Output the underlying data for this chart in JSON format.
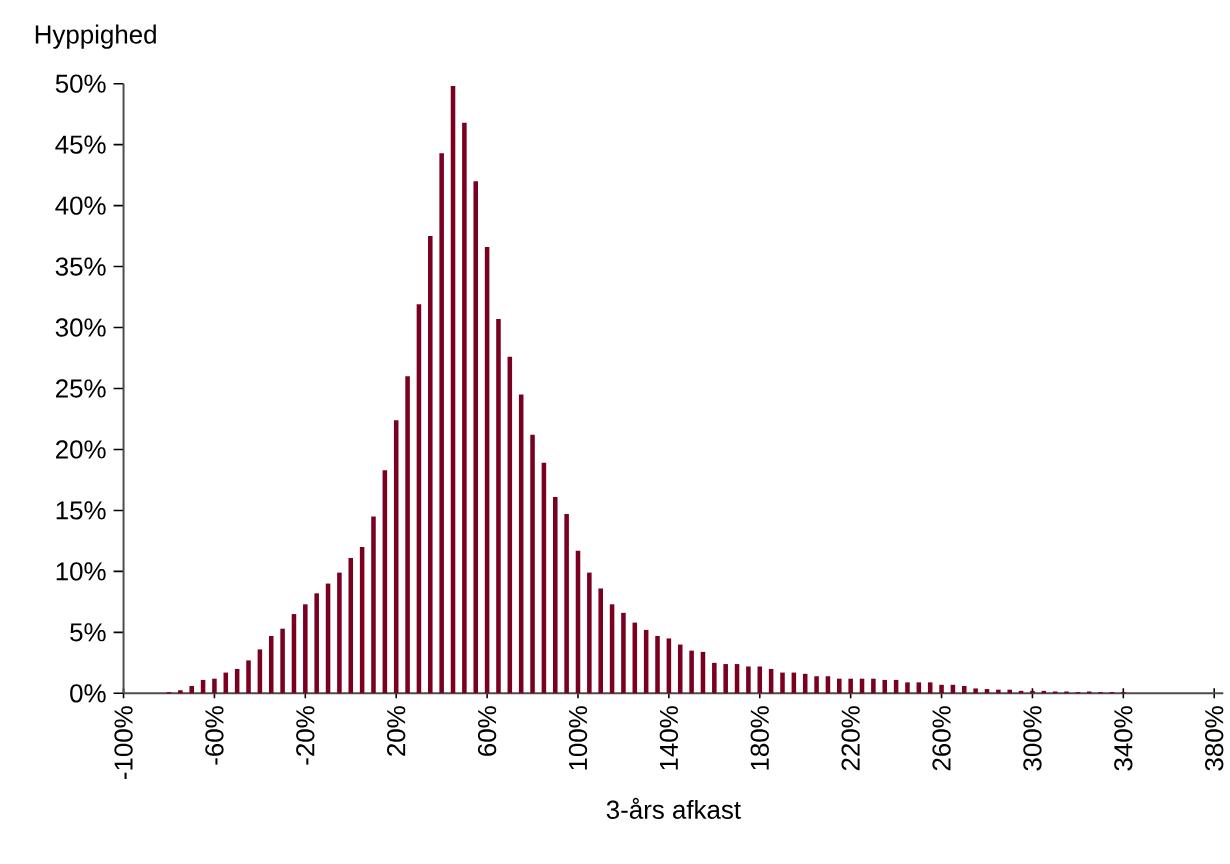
{
  "chart_data": {
    "type": "histogram",
    "xlabel": "3-års afkast",
    "ylabel": "Hyppighed",
    "color": "#7a0020",
    "bins": [
      -82.5,
      -77.5,
      -72.5,
      -67.5,
      -62.5,
      -57.5,
      -52.5,
      -47.5,
      -42.5,
      -37.5,
      -32.5,
      -27.5,
      -22.5,
      -17.5,
      -12.5,
      -7.5,
      -2.5,
      2.5,
      7.5,
      12.5,
      17.5,
      22.5,
      27.5,
      32.5,
      37.5,
      42.5,
      47.5,
      52.5,
      57.5,
      62.5,
      67.5,
      72.5,
      77.5,
      82.5,
      87.5,
      92.5,
      97.5,
      102.5,
      107.5,
      112.5,
      117.5,
      122.5,
      127.5,
      132.5,
      137.5,
      142.5,
      147.5,
      152.5,
      157.5,
      162.5,
      167.5,
      172.5,
      177.5,
      182.5,
      187.5,
      192.5,
      197.5,
      202.5,
      207.5,
      212.5,
      217.5,
      222.5,
      227.5,
      232.5,
      237.5,
      242.5,
      247.5,
      252.5,
      257.5,
      262.5,
      267.5,
      272.5,
      277.5,
      282.5,
      287.5,
      292.5,
      297.5,
      302.5,
      307.5,
      312.5,
      317.5,
      322.5,
      327.5,
      332.5,
      337.5,
      342.5
    ],
    "values": [
      0.1,
      0.25,
      0.6,
      1.1,
      1.2,
      1.7,
      2.0,
      2.7,
      3.6,
      4.7,
      5.3,
      6.5,
      7.3,
      8.2,
      9.0,
      9.9,
      11.1,
      12.0,
      14.5,
      18.3,
      22.4,
      26.0,
      31.9,
      37.5,
      44.3,
      49.8,
      46.8,
      42.0,
      36.6,
      30.7,
      27.6,
      24.5,
      21.2,
      18.9,
      16.1,
      14.7,
      11.7,
      9.9,
      8.6,
      7.3,
      6.6,
      5.8,
      5.2,
      4.7,
      4.5,
      4.0,
      3.5,
      3.4,
      2.5,
      2.4,
      2.4,
      2.2,
      2.2,
      2.0,
      1.7,
      1.7,
      1.6,
      1.4,
      1.4,
      1.2,
      1.2,
      1.2,
      1.2,
      1.1,
      1.1,
      0.9,
      0.9,
      0.9,
      0.7,
      0.7,
      0.6,
      0.4,
      0.35,
      0.3,
      0.3,
      0.2,
      0.2,
      0.2,
      0.15,
      0.15,
      0.1,
      0.15,
      0.1,
      0.1,
      0.1
    ],
    "xlim": [
      -100,
      384
    ],
    "ylim": [
      0,
      50
    ],
    "xticks": [
      {
        "value": -100,
        "label": "-100%"
      },
      {
        "value": -60,
        "label": "-60%"
      },
      {
        "value": -20,
        "label": "-20%"
      },
      {
        "value": 20,
        "label": "20%"
      },
      {
        "value": 60,
        "label": "60%"
      },
      {
        "value": 100,
        "label": "100%"
      },
      {
        "value": 140,
        "label": "140%"
      },
      {
        "value": 180,
        "label": "180%"
      },
      {
        "value": 220,
        "label": "220%"
      },
      {
        "value": 260,
        "label": "260%"
      },
      {
        "value": 300,
        "label": "300%"
      },
      {
        "value": 340,
        "label": "340%"
      },
      {
        "value": 380,
        "label": "380%"
      }
    ],
    "yticks": [
      {
        "value": 0,
        "label": "0%"
      },
      {
        "value": 5,
        "label": "5%"
      },
      {
        "value": 10,
        "label": "10%"
      },
      {
        "value": 15,
        "label": "15%"
      },
      {
        "value": 20,
        "label": "20%"
      },
      {
        "value": 25,
        "label": "25%"
      },
      {
        "value": 30,
        "label": "30%"
      },
      {
        "value": 35,
        "label": "35%"
      },
      {
        "value": 40,
        "label": "40%"
      },
      {
        "value": 45,
        "label": "45%"
      },
      {
        "value": 50,
        "label": "50%"
      }
    ]
  }
}
